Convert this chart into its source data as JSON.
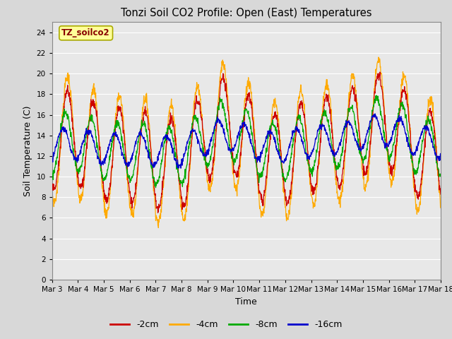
{
  "title": "Tonzi Soil CO2 Profile: Open (East) Temperatures",
  "xlabel": "Time",
  "ylabel": "Soil Temperature (C)",
  "ylim": [
    0,
    25
  ],
  "yticks": [
    0,
    2,
    4,
    6,
    8,
    10,
    12,
    14,
    16,
    18,
    20,
    22,
    24
  ],
  "xtick_labels": [
    "Mar 3",
    "Mar 4",
    "Mar 5",
    "Mar 6",
    "Mar 7",
    "Mar 8",
    "Mar 9",
    "Mar 10",
    "Mar 11",
    "Mar 12",
    "Mar 13",
    "Mar 14",
    "Mar 15",
    "Mar 16",
    "Mar 17",
    "Mar 18"
  ],
  "legend_label": "TZ_soilco2",
  "series_labels": [
    "-2cm",
    "-4cm",
    "-8cm",
    "-16cm"
  ],
  "series_colors": [
    "#cc0000",
    "#ffaa00",
    "#00aa00",
    "#0000cc"
  ],
  "fig_bg_color": "#d8d8d8",
  "plot_bg_color": "#e8e8e8",
  "legend_box_facecolor": "#ffff99",
  "legend_box_edgecolor": "#aaaa00",
  "legend_text_color": "#880000",
  "grid_color": "#ffffff",
  "days": 15,
  "pts_per_day": 96
}
